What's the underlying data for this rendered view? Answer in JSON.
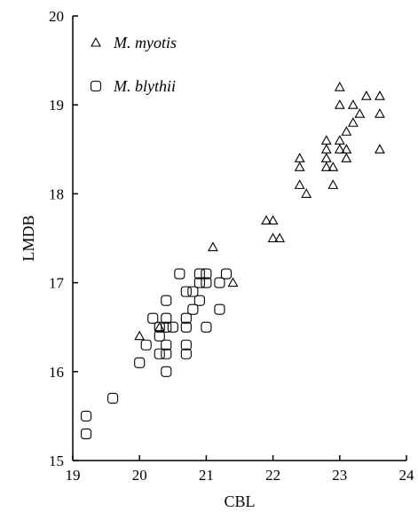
{
  "chart_data": {
    "type": "scatter",
    "xlabel": "CBL",
    "ylabel": "LMDB",
    "xlim": [
      19,
      24
    ],
    "ylim": [
      15,
      20
    ],
    "x_ticks": [
      "19",
      "20",
      "21",
      "22",
      "23",
      "24"
    ],
    "y_ticks": [
      "15",
      "16",
      "17",
      "18",
      "19",
      "20"
    ],
    "grid": false,
    "legend_position": "top-left",
    "series": [
      {
        "name": "M. myotis",
        "marker": "triangle",
        "points": [
          [
            20.0,
            16.4
          ],
          [
            20.3,
            16.5
          ],
          [
            21.1,
            17.4
          ],
          [
            21.4,
            17.0
          ],
          [
            21.9,
            17.7
          ],
          [
            22.0,
            17.7
          ],
          [
            22.0,
            17.5
          ],
          [
            22.1,
            17.5
          ],
          [
            22.4,
            18.4
          ],
          [
            22.4,
            18.3
          ],
          [
            22.4,
            18.1
          ],
          [
            22.5,
            18.0
          ],
          [
            22.8,
            18.6
          ],
          [
            22.8,
            18.5
          ],
          [
            22.8,
            18.4
          ],
          [
            22.8,
            18.3
          ],
          [
            22.9,
            18.3
          ],
          [
            22.9,
            18.1
          ],
          [
            23.0,
            19.2
          ],
          [
            23.0,
            19.0
          ],
          [
            23.0,
            18.6
          ],
          [
            23.0,
            18.5
          ],
          [
            23.1,
            18.7
          ],
          [
            23.1,
            18.5
          ],
          [
            23.1,
            18.4
          ],
          [
            23.2,
            19.0
          ],
          [
            23.2,
            18.8
          ],
          [
            23.3,
            18.9
          ],
          [
            23.4,
            19.1
          ],
          [
            23.6,
            19.1
          ],
          [
            23.6,
            18.9
          ],
          [
            23.6,
            18.5
          ]
        ]
      },
      {
        "name": "M. blythii",
        "marker": "square",
        "points": [
          [
            19.2,
            15.5
          ],
          [
            19.2,
            15.3
          ],
          [
            19.6,
            15.7
          ],
          [
            20.0,
            16.1
          ],
          [
            20.1,
            16.3
          ],
          [
            20.2,
            16.6
          ],
          [
            20.3,
            16.5
          ],
          [
            20.3,
            16.4
          ],
          [
            20.3,
            16.2
          ],
          [
            20.4,
            16.8
          ],
          [
            20.4,
            16.6
          ],
          [
            20.4,
            16.5
          ],
          [
            20.4,
            16.3
          ],
          [
            20.4,
            16.2
          ],
          [
            20.4,
            16.0
          ],
          [
            20.5,
            16.5
          ],
          [
            20.6,
            17.1
          ],
          [
            20.7,
            16.9
          ],
          [
            20.7,
            16.6
          ],
          [
            20.7,
            16.5
          ],
          [
            20.7,
            16.3
          ],
          [
            20.7,
            16.2
          ],
          [
            20.8,
            16.9
          ],
          [
            20.8,
            16.7
          ],
          [
            20.9,
            17.1
          ],
          [
            20.9,
            17.0
          ],
          [
            20.9,
            16.8
          ],
          [
            21.0,
            17.1
          ],
          [
            21.0,
            17.0
          ],
          [
            21.0,
            16.5
          ],
          [
            21.2,
            17.0
          ],
          [
            21.2,
            16.7
          ],
          [
            21.3,
            17.1
          ]
        ]
      }
    ]
  }
}
